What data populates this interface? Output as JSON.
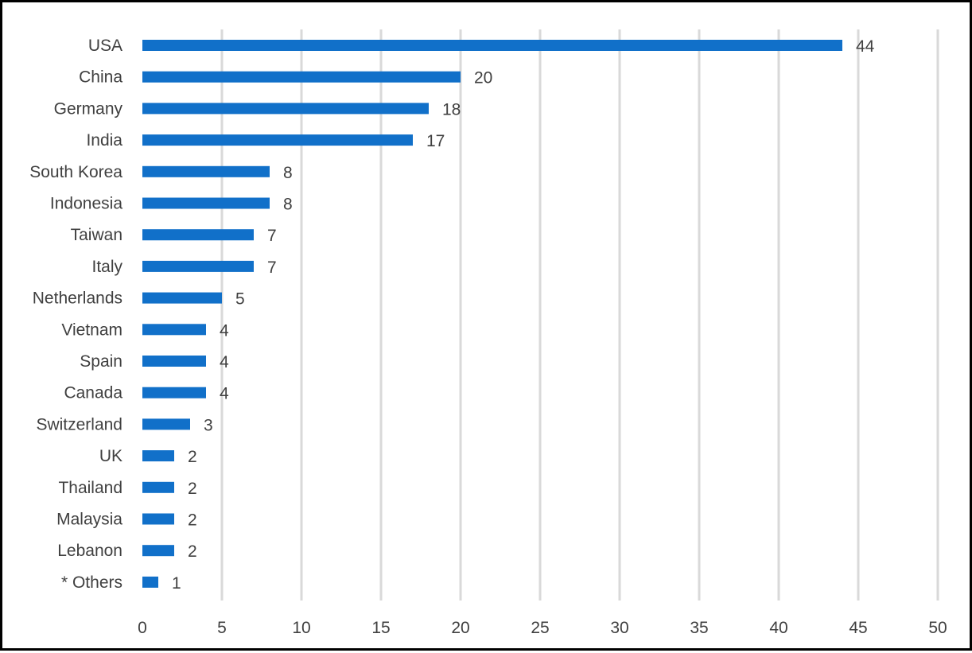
{
  "chart_data": {
    "type": "bar",
    "orientation": "horizontal",
    "title": "",
    "xlabel": "",
    "ylabel": "",
    "categories": [
      "USA",
      "China",
      "Germany",
      "India",
      "South Korea",
      "Indonesia",
      "Taiwan",
      "Italy",
      "Netherlands",
      "Vietnam",
      "Spain",
      "Canada",
      "Switzerland",
      "UK",
      "Thailand",
      "Malaysia",
      "Lebanon",
      "* Others"
    ],
    "values": [
      44,
      20,
      18,
      17,
      8,
      8,
      7,
      7,
      5,
      4,
      4,
      4,
      3,
      2,
      2,
      2,
      2,
      1
    ],
    "xlim": [
      0,
      50
    ],
    "xticks": [
      "0",
      "5",
      "10",
      "15",
      "20",
      "25",
      "30",
      "35",
      "40",
      "45",
      "50"
    ],
    "grid": "vertical",
    "legend": "none",
    "data_labels": true,
    "colors": {
      "bar": "#1170C9",
      "grid": "#D9D9D9",
      "text": "#404040",
      "border": "#000000"
    }
  }
}
